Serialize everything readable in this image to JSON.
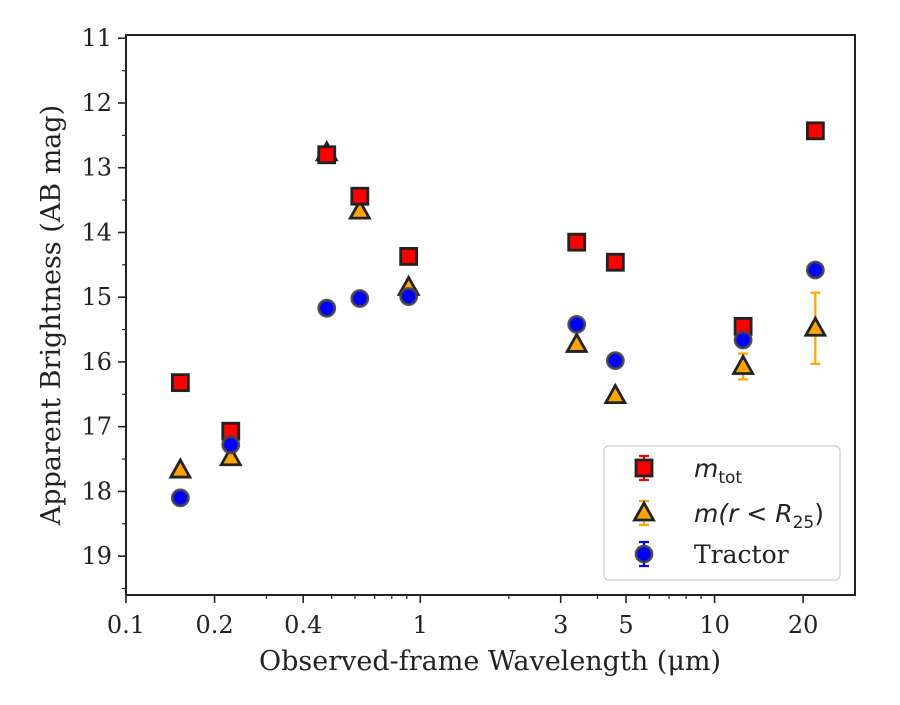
{
  "chart_data": {
    "type": "scatter",
    "xlabel": "Observed-frame Wavelength (μm)",
    "ylabel": "Apparent Brightness (AB mag)",
    "x_scale": "log",
    "y_inverted": true,
    "xlim": [
      0.1,
      30
    ],
    "ylim": [
      19.6,
      10.95
    ],
    "x_ticks": [
      0.1,
      0.2,
      0.4,
      1,
      3,
      5,
      10,
      20
    ],
    "x_tick_labels": [
      "0.1",
      "0.2",
      "0.4",
      "1",
      "3",
      "5",
      "10",
      "20"
    ],
    "y_ticks": [
      11,
      12,
      13,
      14,
      15,
      16,
      17,
      18,
      19
    ],
    "y_tick_labels": [
      "11",
      "12",
      "13",
      "14",
      "15",
      "16",
      "17",
      "18",
      "19"
    ],
    "grid": false,
    "legend_position": "bottom-right",
    "series": [
      {
        "name": "m_tot",
        "legend_main": "m",
        "legend_sub": "tot",
        "marker": "square",
        "color": "#ff0000",
        "edge": "#222222",
        "errcolor": "#ff0000",
        "x": [
          0.153,
          0.227,
          0.481,
          0.623,
          0.913,
          3.4,
          4.6,
          12.5,
          22.0
        ],
        "y": [
          16.32,
          17.07,
          12.8,
          13.44,
          14.37,
          14.15,
          14.46,
          15.45,
          12.43
        ],
        "err": [
          0.05,
          0.05,
          0.03,
          0.03,
          0.03,
          0.04,
          0.04,
          0.05,
          0.06
        ]
      },
      {
        "name": "m(r < R_25)",
        "legend_main": "m(r < R",
        "legend_sub": "25",
        "legend_tail": ")",
        "marker": "triangle",
        "color": "#ffa500",
        "edge": "#222222",
        "errcolor": "#ffa500",
        "x": [
          0.153,
          0.227,
          0.481,
          0.623,
          0.913,
          3.4,
          4.6,
          12.5,
          22.0
        ],
        "y": [
          17.67,
          17.48,
          12.77,
          13.67,
          14.85,
          15.73,
          16.52,
          16.07,
          15.48
        ],
        "err": [
          0.03,
          0.03,
          0.02,
          0.02,
          0.02,
          0.04,
          0.04,
          0.2,
          0.55
        ]
      },
      {
        "name": "Tractor",
        "marker": "circle",
        "color": "#0000ff",
        "edge": "#444444",
        "errcolor": "#0000ff",
        "x": [
          0.153,
          0.227,
          0.481,
          0.623,
          0.913,
          3.4,
          4.6,
          12.5,
          22.0
        ],
        "y": [
          18.1,
          17.28,
          15.17,
          15.02,
          14.99,
          15.42,
          15.98,
          15.66,
          14.58
        ],
        "err": [
          0.05,
          0.05,
          0.04,
          0.04,
          0.04,
          0.05,
          0.05,
          0.06,
          0.07
        ]
      }
    ]
  }
}
